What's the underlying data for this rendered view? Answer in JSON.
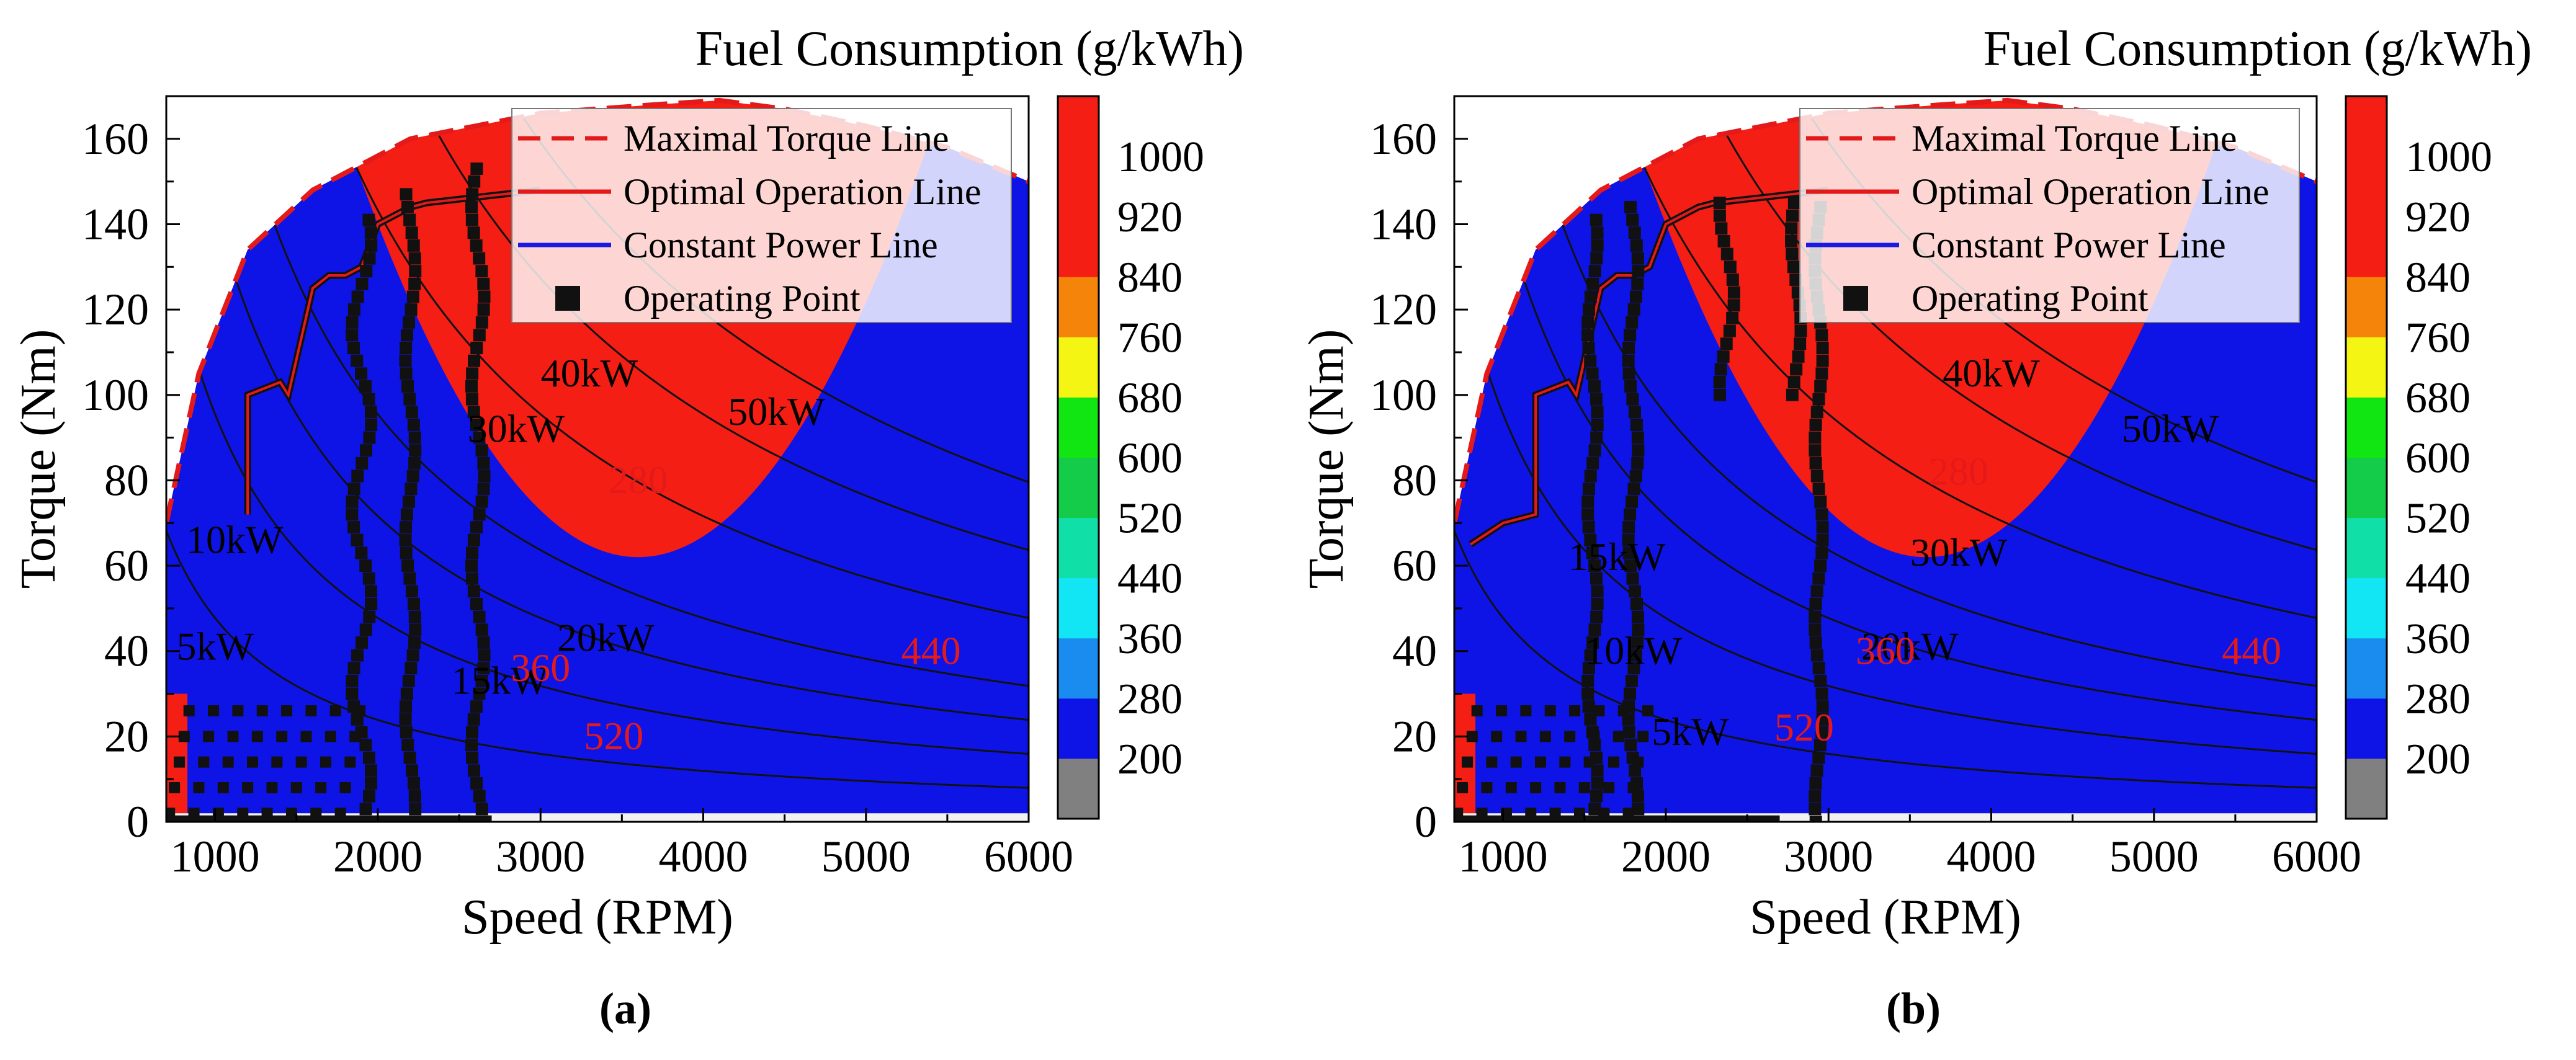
{
  "figure": {
    "panel_labels": [
      "(a)",
      "(b)"
    ]
  },
  "chart_data": [
    {
      "type": "contour",
      "panel": "(a)",
      "colorbar_title": "Fuel Consumption (g/kWh)",
      "xlabel": "Speed (RPM)",
      "ylabel": "Torque (Nm)",
      "xlim": [
        700,
        6000
      ],
      "ylim": [
        0,
        170
      ],
      "xticks": [
        1000,
        2000,
        3000,
        4000,
        5000,
        6000
      ],
      "yticks": [
        0,
        20,
        40,
        60,
        80,
        100,
        120,
        140,
        160
      ],
      "colorbar": {
        "levels": [
          200,
          280,
          360,
          440,
          520,
          600,
          680,
          760,
          840,
          920,
          1000
        ],
        "tick_labels": [
          "200",
          "280",
          "360",
          "440",
          "520",
          "600",
          "680",
          "760",
          "840",
          "920",
          "1000"
        ],
        "colors": [
          "#808080",
          "#0f14e6",
          "#1a8cf0",
          "#12e6f5",
          "#10e0a8",
          "#14cc4a",
          "#12e612",
          "#f5f514",
          "#f5850a",
          "#f51e14",
          "#f51e14"
        ]
      },
      "legend": {
        "position": "top-right",
        "entries": [
          {
            "label": "Maximal Torque Line",
            "style": "dashed",
            "color": "#e41a1a"
          },
          {
            "label": "Optimal Operation Line",
            "style": "solid",
            "color": "#e41a1a"
          },
          {
            "label": "Constant Power Line",
            "style": "solid",
            "color": "#1a1ae0"
          },
          {
            "label": "Operating Point",
            "style": "square",
            "color": "#111111"
          }
        ]
      },
      "max_torque_line": {
        "x": [
          700,
          900,
          1200,
          1600,
          2200,
          3000,
          3700,
          4100,
          4500,
          5000,
          5500,
          6000
        ],
        "y": [
          70,
          105,
          134,
          148,
          160,
          166,
          168,
          169,
          167,
          163,
          158,
          150
        ]
      },
      "optimal_line": {
        "x": [
          1200,
          1200,
          1400,
          1450,
          1600,
          1700,
          1800,
          1900,
          2000,
          2100,
          2200,
          2300,
          3000
        ],
        "y": [
          72,
          100,
          103,
          100,
          125,
          128,
          128,
          130,
          140,
          142,
          144,
          145,
          148
        ]
      },
      "constant_power_lines": [
        {
          "label": "5kW",
          "kw": 5
        },
        {
          "label": "10kW",
          "kw": 10
        },
        {
          "label": "15kW",
          "kw": 15
        },
        {
          "label": "20kW",
          "kw": 20
        },
        {
          "label": "30kW",
          "kw": 30
        },
        {
          "label": "40kW",
          "kw": 40
        },
        {
          "label": "50kW",
          "kw": 50
        }
      ],
      "power_labels": [
        {
          "text": "5kW",
          "x": 1000,
          "y": 38
        },
        {
          "text": "10kW",
          "x": 1120,
          "y": 63
        },
        {
          "text": "15kW",
          "x": 2750,
          "y": 30
        },
        {
          "text": "20kW",
          "x": 3400,
          "y": 40
        },
        {
          "text": "30kW",
          "x": 2850,
          "y": 89
        },
        {
          "text": "40kW",
          "x": 3300,
          "y": 102
        },
        {
          "text": "50kW",
          "x": 4450,
          "y": 93
        }
      ],
      "contour_labels": [
        {
          "text": "280",
          "x": 3600,
          "y": 77
        },
        {
          "text": "360",
          "x": 3000,
          "y": 33
        },
        {
          "text": "440",
          "x": 5400,
          "y": 37
        },
        {
          "text": "520",
          "x": 3450,
          "y": 17
        }
      ],
      "operating_point_bands": [
        {
          "x0": 1800,
          "x1": 2000,
          "y0": 0,
          "y1": 142
        },
        {
          "x0": 2150,
          "x1": 2250,
          "y0": 0,
          "y1": 148
        },
        {
          "x0": 2550,
          "x1": 2680,
          "y0": 0,
          "y1": 155
        }
      ]
    },
    {
      "type": "contour",
      "panel": "(b)",
      "colorbar_title": "Fuel Consumption (g/kWh)",
      "xlabel": "Speed (RPM)",
      "ylabel": "Torque (Nm)",
      "xlim": [
        700,
        6000
      ],
      "ylim": [
        0,
        170
      ],
      "xticks": [
        1000,
        2000,
        3000,
        4000,
        5000,
        6000
      ],
      "yticks": [
        0,
        20,
        40,
        60,
        80,
        100,
        120,
        140,
        160
      ],
      "colorbar": {
        "levels": [
          200,
          280,
          360,
          440,
          520,
          600,
          680,
          760,
          840,
          920,
          1000
        ],
        "tick_labels": [
          "200",
          "280",
          "360",
          "440",
          "520",
          "600",
          "680",
          "760",
          "840",
          "920",
          "1000"
        ],
        "colors": [
          "#808080",
          "#0f14e6",
          "#1a8cf0",
          "#12e6f5",
          "#10e0a8",
          "#14cc4a",
          "#12e612",
          "#f5f514",
          "#f5850a",
          "#f51e14",
          "#f51e14"
        ]
      },
      "legend": {
        "position": "top-right",
        "entries": [
          {
            "label": "Maximal Torque Line",
            "style": "dashed",
            "color": "#e41a1a"
          },
          {
            "label": "Optimal Operation Line",
            "style": "solid",
            "color": "#e41a1a"
          },
          {
            "label": "Constant Power Line",
            "style": "solid",
            "color": "#1a1ae0"
          },
          {
            "label": "Operating Point",
            "style": "square",
            "color": "#111111"
          }
        ]
      },
      "max_torque_line": {
        "x": [
          700,
          900,
          1200,
          1600,
          2200,
          3000,
          3700,
          4100,
          4500,
          5000,
          5500,
          6000
        ],
        "y": [
          70,
          105,
          134,
          148,
          160,
          166,
          168,
          169,
          167,
          163,
          158,
          150
        ]
      },
      "optimal_line": {
        "x": [
          800,
          1000,
          1200,
          1200,
          1400,
          1450,
          1600,
          1700,
          1800,
          1900,
          2000,
          2100,
          2200,
          2300,
          3000
        ],
        "y": [
          65,
          70,
          72,
          100,
          103,
          100,
          125,
          128,
          128,
          130,
          140,
          142,
          144,
          145,
          148
        ]
      },
      "constant_power_lines": [
        {
          "label": "5kW",
          "kw": 5
        },
        {
          "label": "10kW",
          "kw": 10
        },
        {
          "label": "15kW",
          "kw": 15
        },
        {
          "label": "20kW",
          "kw": 20
        },
        {
          "label": "30kW",
          "kw": 30
        },
        {
          "label": "40kW",
          "kw": 40
        },
        {
          "label": "50kW",
          "kw": 50
        }
      ],
      "power_labels": [
        {
          "text": "5kW",
          "x": 2150,
          "y": 18
        },
        {
          "text": "10kW",
          "x": 1800,
          "y": 37
        },
        {
          "text": "15kW",
          "x": 1700,
          "y": 59
        },
        {
          "text": "20kW",
          "x": 3500,
          "y": 38
        },
        {
          "text": "30kW",
          "x": 3800,
          "y": 60
        },
        {
          "text": "40kW",
          "x": 4000,
          "y": 102
        },
        {
          "text": "50kW",
          "x": 5100,
          "y": 89
        }
      ],
      "contour_labels": [
        {
          "text": "280",
          "x": 3800,
          "y": 79
        },
        {
          "text": "360",
          "x": 3350,
          "y": 37
        },
        {
          "text": "440",
          "x": 5600,
          "y": 37
        },
        {
          "text": "520",
          "x": 2850,
          "y": 19
        }
      ],
      "operating_point_bands": [
        {
          "x0": 1500,
          "x1": 1600,
          "y0": 0,
          "y1": 142
        },
        {
          "x0": 1750,
          "x1": 1850,
          "y0": 0,
          "y1": 145
        },
        {
          "x0": 2300,
          "x1": 2450,
          "y0": 100,
          "y1": 145
        },
        {
          "x0": 2750,
          "x1": 2850,
          "y0": 100,
          "y1": 145
        },
        {
          "x0": 2900,
          "x1": 2980,
          "y0": 0,
          "y1": 145
        }
      ]
    }
  ]
}
